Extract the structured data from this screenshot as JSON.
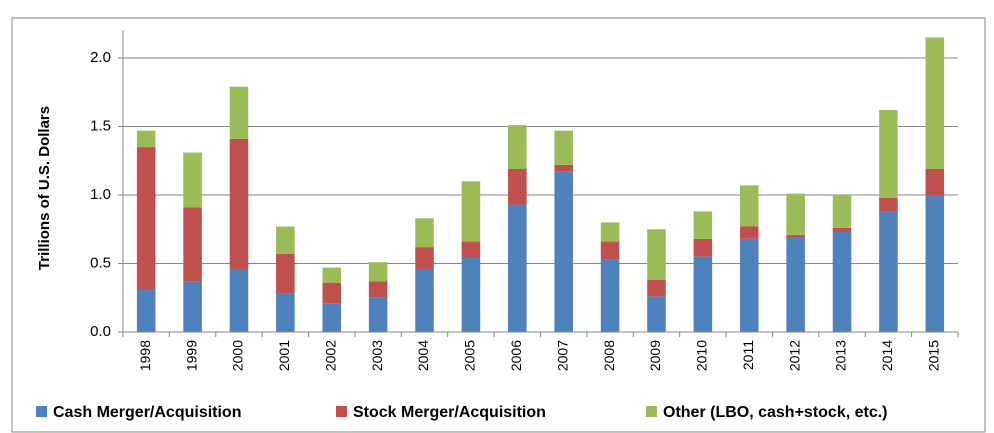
{
  "chart_data": {
    "type": "stacked_bar",
    "y_label": "Trillions of U.S. Dollars",
    "categories": [
      "1998",
      "1999",
      "2000",
      "2001",
      "2002",
      "2003",
      "2004",
      "2005",
      "2006",
      "2007",
      "2008",
      "2009",
      "2010",
      "2011",
      "2012",
      "2013",
      "2014",
      "2015"
    ],
    "series": [
      {
        "name": "Cash Merger/Acquisition",
        "color": "#4f81bd",
        "values": [
          0.31,
          0.37,
          0.46,
          0.28,
          0.21,
          0.25,
          0.46,
          0.54,
          0.93,
          1.17,
          0.53,
          0.26,
          0.55,
          0.68,
          0.69,
          0.73,
          0.88,
          1.0
        ]
      },
      {
        "name": "Stock Merger/Acquisition",
        "color": "#c0504d",
        "values": [
          1.04,
          0.54,
          0.95,
          0.29,
          0.15,
          0.12,
          0.16,
          0.12,
          0.26,
          0.05,
          0.13,
          0.12,
          0.13,
          0.09,
          0.02,
          0.03,
          0.1,
          0.19
        ]
      },
      {
        "name": "Other (LBO, cash+stock, etc.)",
        "color": "#9bbb59",
        "values": [
          0.12,
          0.4,
          0.38,
          0.2,
          0.11,
          0.14,
          0.21,
          0.44,
          0.32,
          0.25,
          0.14,
          0.37,
          0.2,
          0.3,
          0.3,
          0.24,
          0.64,
          0.96
        ]
      }
    ],
    "ylim": [
      0,
      2.2
    ],
    "yticks": [
      {
        "value": 0,
        "label": "0.0"
      },
      0.5,
      {
        "value": 1,
        "label": "1.0"
      },
      1.5,
      {
        "value": 2,
        "label": "2.0"
      }
    ],
    "grid": true,
    "legend": "bottom"
  }
}
